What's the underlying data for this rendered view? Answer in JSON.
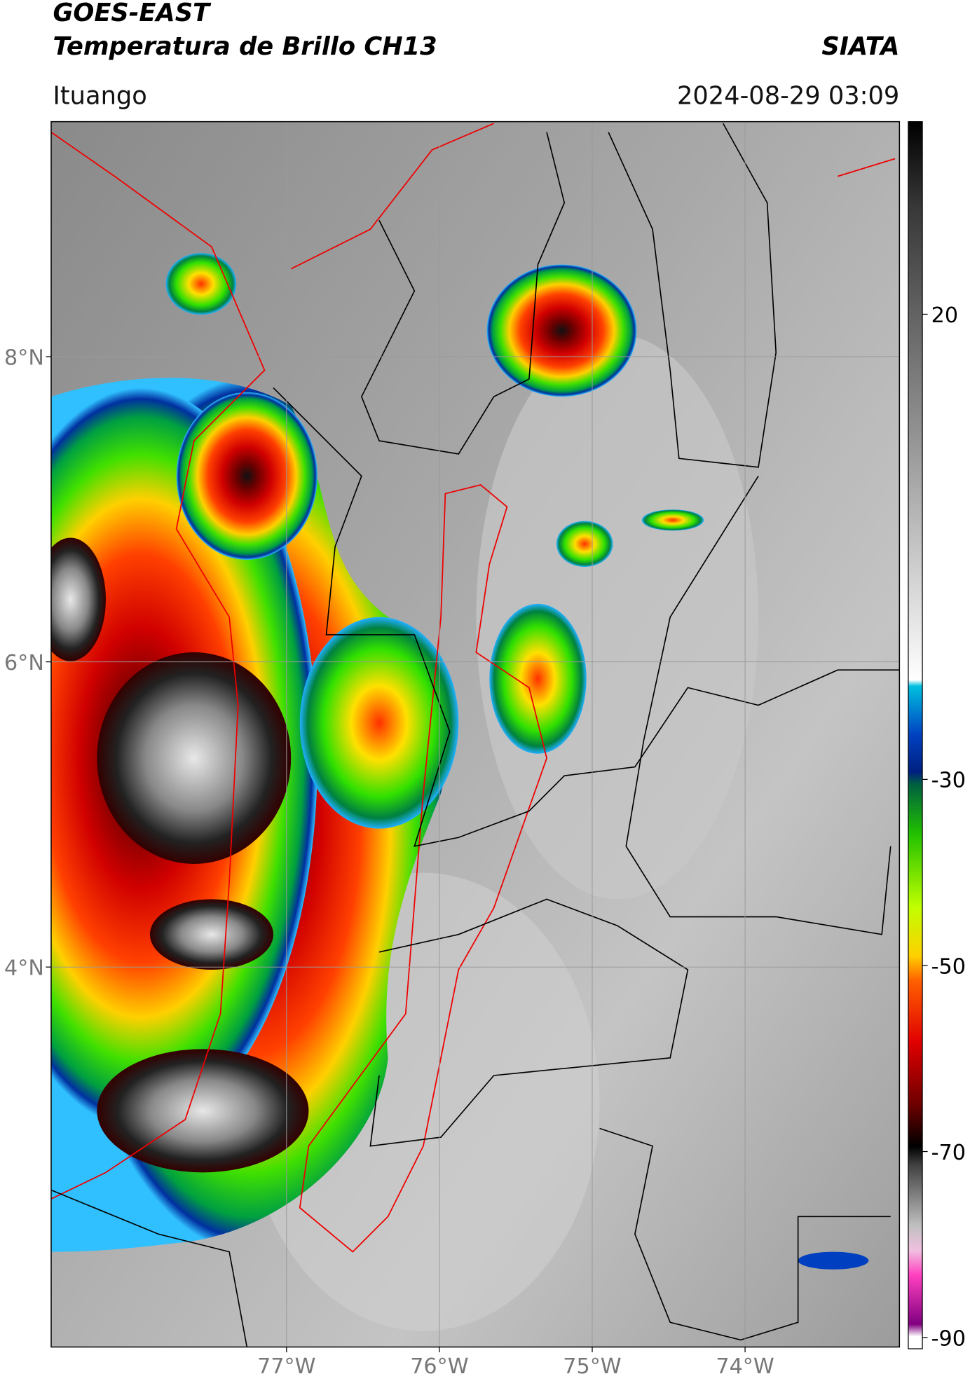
{
  "header": {
    "title_line1": "GOES-EAST",
    "title_line2": "Temperatura de Brillo CH13",
    "organization": "SIATA",
    "location": "Ituango",
    "timestamp": "2024-08-29 03:09"
  },
  "map": {
    "latlim": [
      1.51,
      9.54
    ],
    "lonlim": [
      -78.54,
      -72.99
    ],
    "lat_ticks": [
      {
        "value": 8,
        "label": "8°N"
      },
      {
        "value": 6,
        "label": "6°N"
      },
      {
        "value": 4,
        "label": "4°N"
      }
    ],
    "lon_ticks": [
      {
        "value": -77,
        "label": "77°W"
      },
      {
        "value": -76,
        "label": "76°W"
      },
      {
        "value": -75,
        "label": "75°W"
      },
      {
        "value": -74,
        "label": "74°W"
      }
    ],
    "grid": true
  },
  "colorbar": {
    "lim": [
      -91.2,
      40.7
    ],
    "ticks": [
      20,
      -30,
      -50,
      -70,
      -90
    ]
  }
}
